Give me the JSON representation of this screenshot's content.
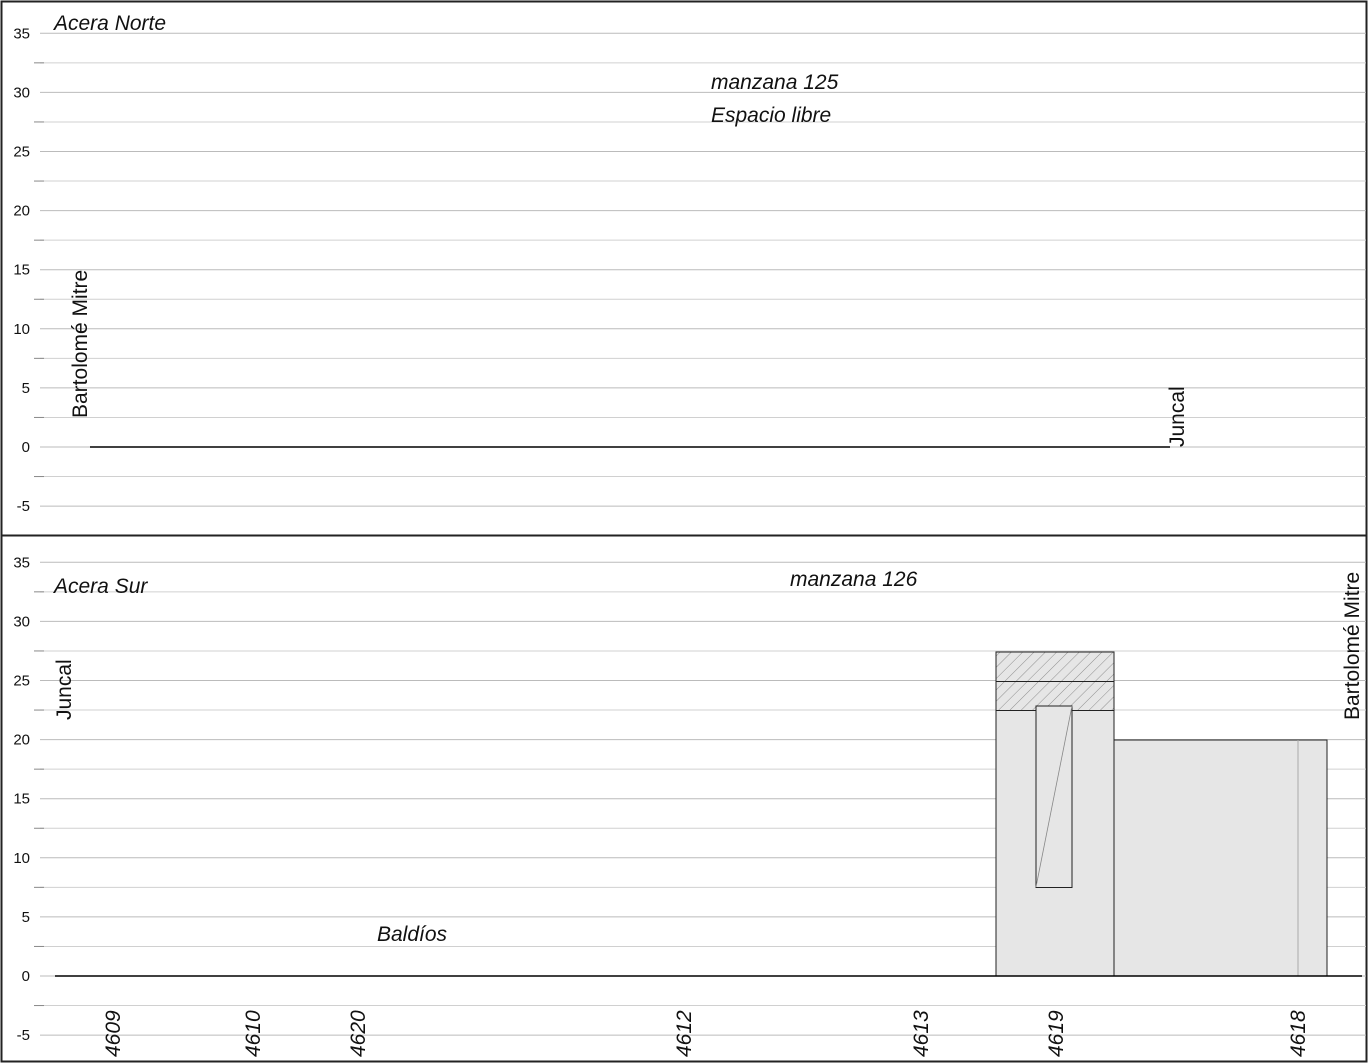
{
  "panels": [
    {
      "yticks": [
        35,
        30,
        25,
        20,
        15,
        10,
        5,
        0,
        -5
      ],
      "title": "Acera Norte",
      "block": "manzana 125",
      "note": "Espacio libre",
      "left_street": "Bartolomé Mitre",
      "right_street": "Juncal"
    },
    {
      "yticks": [
        35,
        30,
        25,
        20,
        15,
        10,
        5,
        0,
        -5
      ],
      "title": "Acera Sur",
      "block": "manzana 126",
      "note": "Baldíos",
      "left_street": "Juncal",
      "right_street": "Bartolomé Mitre",
      "parcels": [
        "4609",
        "4610",
        "4620",
        "4612",
        "4613",
        "4619",
        "4618"
      ]
    }
  ]
}
